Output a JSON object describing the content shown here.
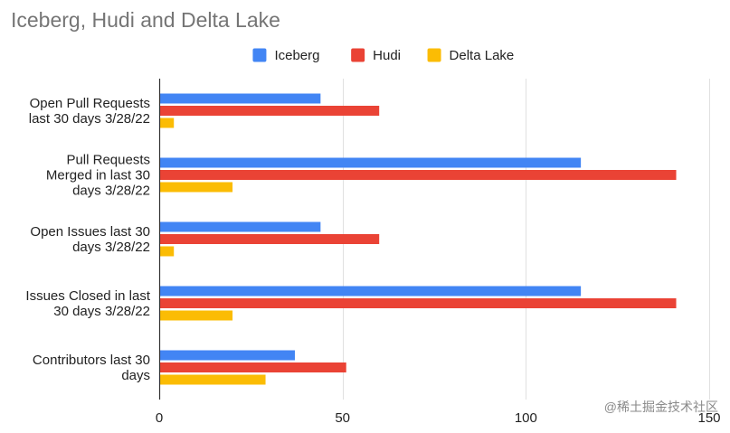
{
  "chart_data": {
    "type": "bar",
    "orientation": "horizontal",
    "title": "Iceberg, Hudi and Delta Lake",
    "categories": [
      [
        "Open Pull Requests",
        "last 30 days 3/28/22"
      ],
      [
        "Pull Requests",
        "Merged in last 30",
        "days 3/28/22"
      ],
      [
        "Open Issues last 30",
        "days 3/28/22"
      ],
      [
        "Issues Closed in last",
        "30 days 3/28/22"
      ],
      [
        "Contributors last 30",
        "days"
      ]
    ],
    "series": [
      {
        "name": "Iceberg",
        "color": "#4285f4",
        "values": [
          44,
          115,
          44,
          115,
          37
        ]
      },
      {
        "name": "Hudi",
        "color": "#ea4335",
        "values": [
          60,
          141,
          60,
          141,
          51
        ]
      },
      {
        "name": "Delta Lake",
        "color": "#fbbc04",
        "values": [
          4,
          20,
          4,
          20,
          29
        ]
      }
    ],
    "xlim": [
      0,
      150
    ],
    "xticks": [
      0,
      50,
      100,
      150
    ],
    "xlabel": "",
    "ylabel": "",
    "grid": true,
    "legend_position": "top-center"
  },
  "watermark": "@稀土掘金技术社区"
}
